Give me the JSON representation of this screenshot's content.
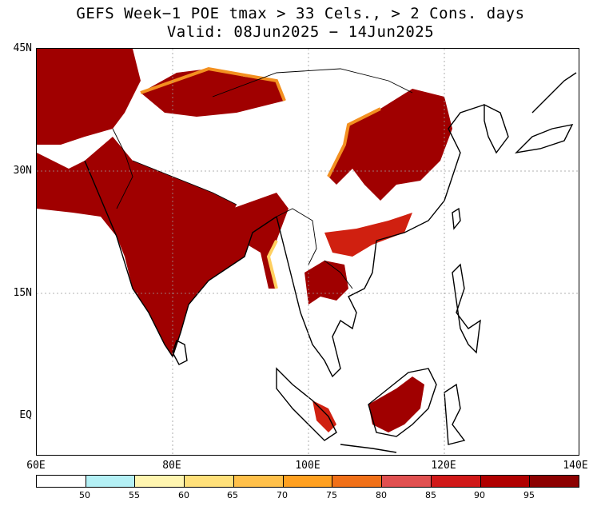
{
  "title_line1": "GEFS Week−1 POE tmax > 33 Cels., > 2 Cons. days",
  "title_line2": "Valid: 08Jun2025 − 14Jun2025",
  "lat_ticks": [
    "45N",
    "30N",
    "15N",
    "EQ"
  ],
  "lon_ticks": [
    "60E",
    "80E",
    "100E",
    "120E",
    "140E"
  ],
  "legend": {
    "labels": [
      "50",
      "55",
      "60",
      "65",
      "70",
      "75",
      "80",
      "85",
      "90",
      "95"
    ],
    "colors": [
      "#ffffff",
      "#b4f0f5",
      "#fff5b0",
      "#ffe07a",
      "#ffc04a",
      "#ffa020",
      "#f07018",
      "#e05050",
      "#d01818",
      "#b00000",
      "#8c0000"
    ]
  },
  "map_colors": {
    "high": "#a00000",
    "mid": "#d02010",
    "orange": "#f39020",
    "yellow": "#ffd060",
    "land": "#ffffff",
    "border": "#000000"
  }
}
